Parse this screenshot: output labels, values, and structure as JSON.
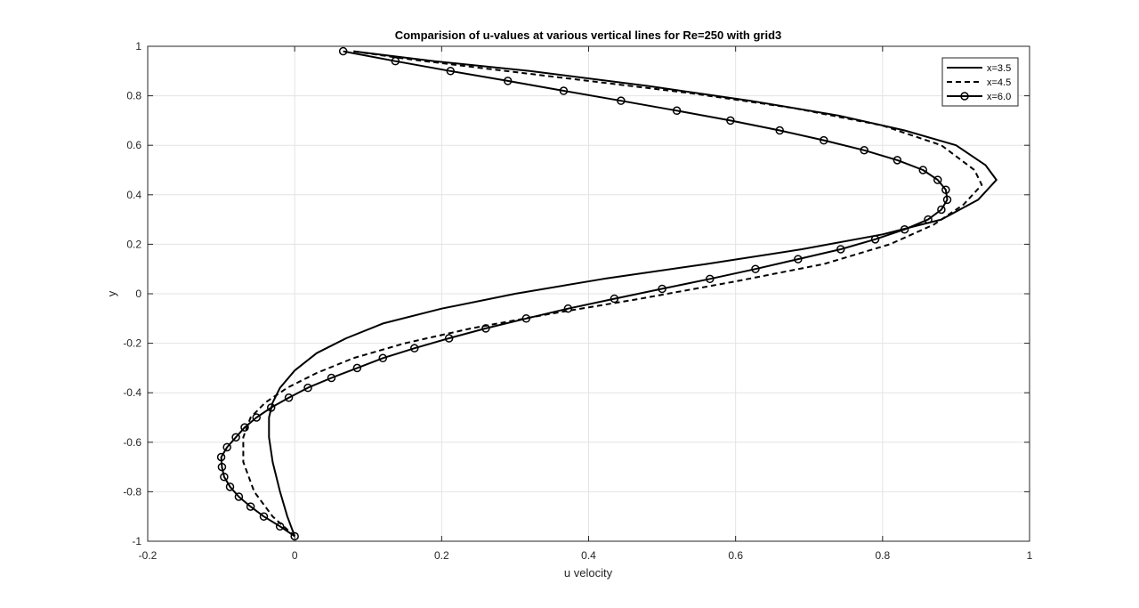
{
  "chart_data": {
    "type": "line",
    "title": "Comparision of u-values at various vertical lines for Re=250 with grid3",
    "xlabel": "u velocity",
    "ylabel": "y",
    "xlim": [
      -0.2,
      1
    ],
    "ylim": [
      -1,
      1
    ],
    "xticks": [
      -0.2,
      0,
      0.2,
      0.4,
      0.6,
      0.8,
      1
    ],
    "xtick_labels": [
      "-0.2",
      "0",
      "0.2",
      "0.4",
      "0.6",
      "0.8",
      "1"
    ],
    "yticks": [
      -1,
      -0.8,
      -0.6,
      -0.4,
      -0.2,
      0,
      0.2,
      0.4,
      0.6,
      0.8,
      1
    ],
    "ytick_labels": [
      "-1",
      "-0.8",
      "-0.6",
      "-0.4",
      "-0.2",
      "0",
      "0.2",
      "0.4",
      "0.6",
      "0.8",
      "1"
    ],
    "grid": true,
    "legend_position": "top-right",
    "series": [
      {
        "name": "x=3.5",
        "style": "solid",
        "marker": "none",
        "points": [
          [
            0,
            -0.98
          ],
          [
            -0.01,
            -0.9
          ],
          [
            -0.02,
            -0.8
          ],
          [
            -0.03,
            -0.68
          ],
          [
            -0.035,
            -0.58
          ],
          [
            -0.035,
            -0.5
          ],
          [
            -0.03,
            -0.44
          ],
          [
            -0.02,
            -0.38
          ],
          [
            0,
            -0.31
          ],
          [
            0.03,
            -0.24
          ],
          [
            0.07,
            -0.18
          ],
          [
            0.12,
            -0.12
          ],
          [
            0.2,
            -0.06
          ],
          [
            0.3,
            0.0
          ],
          [
            0.42,
            0.06
          ],
          [
            0.56,
            0.12
          ],
          [
            0.69,
            0.18
          ],
          [
            0.8,
            0.24
          ],
          [
            0.88,
            0.3
          ],
          [
            0.93,
            0.38
          ],
          [
            0.955,
            0.46
          ],
          [
            0.94,
            0.52
          ],
          [
            0.9,
            0.6
          ],
          [
            0.83,
            0.66
          ],
          [
            0.74,
            0.72
          ],
          [
            0.62,
            0.78
          ],
          [
            0.48,
            0.84
          ],
          [
            0.32,
            0.9
          ],
          [
            0.19,
            0.94
          ],
          [
            0.08,
            0.98
          ]
        ]
      },
      {
        "name": "x=4.5",
        "style": "dashed",
        "marker": "none",
        "points": [
          [
            0,
            -0.98
          ],
          [
            -0.03,
            -0.9
          ],
          [
            -0.055,
            -0.8
          ],
          [
            -0.07,
            -0.68
          ],
          [
            -0.07,
            -0.58
          ],
          [
            -0.06,
            -0.5
          ],
          [
            -0.04,
            -0.44
          ],
          [
            -0.01,
            -0.38
          ],
          [
            0.03,
            -0.32
          ],
          [
            0.08,
            -0.26
          ],
          [
            0.15,
            -0.2
          ],
          [
            0.24,
            -0.14
          ],
          [
            0.35,
            -0.08
          ],
          [
            0.47,
            -0.02
          ],
          [
            0.6,
            0.05
          ],
          [
            0.72,
            0.12
          ],
          [
            0.81,
            0.2
          ],
          [
            0.87,
            0.28
          ],
          [
            0.91,
            0.36
          ],
          [
            0.935,
            0.44
          ],
          [
            0.925,
            0.5
          ],
          [
            0.88,
            0.6
          ],
          [
            0.8,
            0.68
          ],
          [
            0.68,
            0.75
          ],
          [
            0.54,
            0.81
          ],
          [
            0.4,
            0.86
          ],
          [
            0.26,
            0.91
          ],
          [
            0.15,
            0.95
          ],
          [
            0.08,
            0.98
          ]
        ]
      },
      {
        "name": "x=6.0",
        "style": "solid",
        "marker": "circle",
        "points": [
          [
            0,
            -0.98
          ],
          [
            -0.02,
            -0.94
          ],
          [
            -0.042,
            -0.9
          ],
          [
            -0.06,
            -0.86
          ],
          [
            -0.076,
            -0.82
          ],
          [
            -0.088,
            -0.78
          ],
          [
            -0.096,
            -0.74
          ],
          [
            -0.099,
            -0.7
          ],
          [
            -0.1,
            -0.66
          ],
          [
            -0.092,
            -0.62
          ],
          [
            -0.08,
            -0.58
          ],
          [
            -0.068,
            -0.54
          ],
          [
            -0.052,
            -0.5
          ],
          [
            -0.032,
            -0.46
          ],
          [
            -0.008,
            -0.42
          ],
          [
            0.018,
            -0.38
          ],
          [
            0.05,
            -0.34
          ],
          [
            0.085,
            -0.3
          ],
          [
            0.12,
            -0.26
          ],
          [
            0.163,
            -0.22
          ],
          [
            0.21,
            -0.18
          ],
          [
            0.26,
            -0.14
          ],
          [
            0.315,
            -0.1
          ],
          [
            0.372,
            -0.06
          ],
          [
            0.435,
            -0.02
          ],
          [
            0.5,
            0.02
          ],
          [
            0.565,
            0.06
          ],
          [
            0.627,
            0.1
          ],
          [
            0.685,
            0.14
          ],
          [
            0.743,
            0.18
          ],
          [
            0.79,
            0.22
          ],
          [
            0.83,
            0.26
          ],
          [
            0.862,
            0.3
          ],
          [
            0.88,
            0.34
          ],
          [
            0.888,
            0.38
          ],
          [
            0.886,
            0.42
          ],
          [
            0.875,
            0.46
          ],
          [
            0.855,
            0.5
          ],
          [
            0.82,
            0.54
          ],
          [
            0.775,
            0.58
          ],
          [
            0.72,
            0.62
          ],
          [
            0.66,
            0.66
          ],
          [
            0.593,
            0.7
          ],
          [
            0.52,
            0.74
          ],
          [
            0.444,
            0.78
          ],
          [
            0.366,
            0.82
          ],
          [
            0.29,
            0.86
          ],
          [
            0.212,
            0.9
          ],
          [
            0.137,
            0.94
          ],
          [
            0.066,
            0.98
          ]
        ]
      }
    ]
  }
}
